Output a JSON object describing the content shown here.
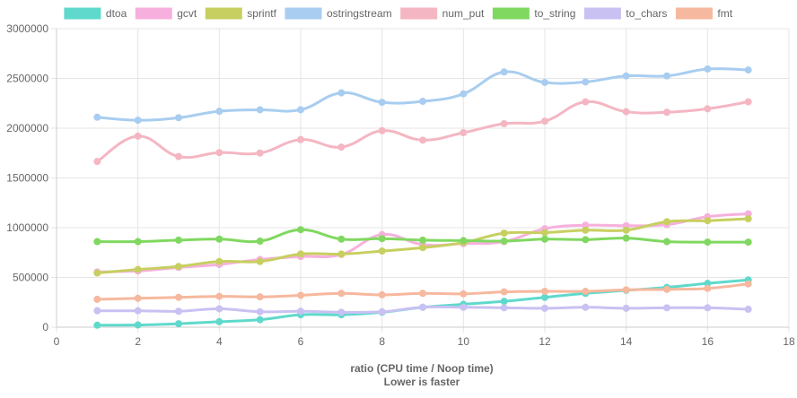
{
  "chart_data": {
    "type": "line",
    "title": "",
    "xlabel": "ratio (CPU time / Noop time)",
    "xlabel_sub": "Lower is faster",
    "ylabel": "",
    "xlim": [
      0,
      18
    ],
    "ylim": [
      0,
      3000000
    ],
    "x_ticks": [
      0,
      2,
      4,
      6,
      8,
      10,
      12,
      14,
      16,
      18
    ],
    "y_ticks": [
      0,
      500000,
      1000000,
      1500000,
      2000000,
      2500000,
      3000000
    ],
    "grid": true,
    "legend_position": "top",
    "x": [
      1,
      2,
      3,
      4,
      5,
      6,
      7,
      8,
      9,
      10,
      11,
      12,
      13,
      14,
      15,
      16,
      17
    ],
    "series": [
      {
        "name": "dtoa",
        "color": "#5fd9cc",
        "values": [
          20000,
          22000,
          35000,
          55000,
          75000,
          125000,
          125000,
          150000,
          200000,
          230000,
          260000,
          300000,
          340000,
          370000,
          400000,
          440000,
          475000
        ]
      },
      {
        "name": "gcvt",
        "color": "#f7b0dd",
        "values": [
          555000,
          565000,
          600000,
          630000,
          680000,
          710000,
          730000,
          930000,
          830000,
          840000,
          860000,
          990000,
          1025000,
          1020000,
          1030000,
          1110000,
          1140000
        ]
      },
      {
        "name": "sprintf",
        "color": "#c7cf60",
        "values": [
          545000,
          580000,
          610000,
          660000,
          660000,
          735000,
          735000,
          765000,
          800000,
          850000,
          945000,
          950000,
          975000,
          975000,
          1060000,
          1070000,
          1090000
        ]
      },
      {
        "name": "ostringstream",
        "color": "#a8cdf0",
        "values": [
          2110000,
          2080000,
          2105000,
          2170000,
          2185000,
          2185000,
          2355000,
          2260000,
          2270000,
          2345000,
          2565000,
          2460000,
          2465000,
          2525000,
          2525000,
          2595000,
          2585000
        ]
      },
      {
        "name": "num_put",
        "color": "#f4b6c2",
        "values": [
          1665000,
          1920000,
          1715000,
          1755000,
          1750000,
          1885000,
          1810000,
          1975000,
          1880000,
          1955000,
          2045000,
          2070000,
          2265000,
          2165000,
          2160000,
          2195000,
          2265000
        ]
      },
      {
        "name": "to_string",
        "color": "#80d860",
        "values": [
          860000,
          860000,
          875000,
          885000,
          865000,
          980000,
          885000,
          890000,
          875000,
          870000,
          865000,
          885000,
          880000,
          895000,
          860000,
          855000,
          855000
        ]
      },
      {
        "name": "to_chars",
        "color": "#c9c1f2",
        "values": [
          165000,
          165000,
          160000,
          185000,
          155000,
          160000,
          150000,
          155000,
          200000,
          200000,
          195000,
          190000,
          200000,
          190000,
          195000,
          195000,
          180000
        ]
      },
      {
        "name": "fmt",
        "color": "#f6b89e",
        "values": [
          280000,
          290000,
          300000,
          310000,
          305000,
          320000,
          340000,
          325000,
          340000,
          335000,
          355000,
          360000,
          360000,
          375000,
          380000,
          390000,
          435000
        ]
      }
    ]
  }
}
